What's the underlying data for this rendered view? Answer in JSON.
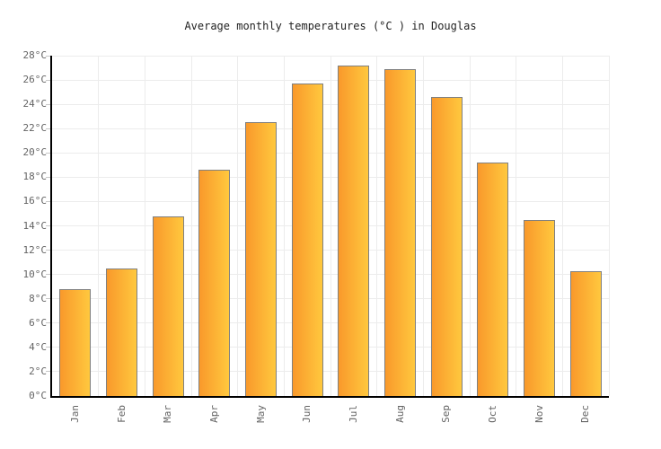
{
  "chart_data": {
    "type": "bar",
    "title": "Average monthly temperatures (°C ) in Douglas",
    "categories": [
      "Jan",
      "Feb",
      "Mar",
      "Apr",
      "May",
      "Jun",
      "Jul",
      "Aug",
      "Sep",
      "Oct",
      "Nov",
      "Dec"
    ],
    "values": [
      8.8,
      10.5,
      14.8,
      18.6,
      22.5,
      25.7,
      27.2,
      26.9,
      24.6,
      19.2,
      14.5,
      10.3
    ],
    "xlabel": "",
    "ylabel": "",
    "ylim": [
      0,
      28
    ],
    "ytick_step": 2,
    "ytick_labels": [
      "0°C",
      "2°C",
      "4°C",
      "6°C",
      "8°C",
      "10°C",
      "12°C",
      "14°C",
      "16°C",
      "18°C",
      "20°C",
      "22°C",
      "24°C",
      "26°C",
      "28°C"
    ],
    "grid": true,
    "legend": false
  },
  "colors": {
    "background": "#ffffff",
    "bar_gradient_left": "#F9992B",
    "bar_gradient_right": "#FFC83E",
    "bar_border": "#808080",
    "axis": "#000000",
    "gridline": "#ECECEC",
    "tick_mark": "#C8C8C8",
    "tick_text": "#646464",
    "title_text": "#222222"
  }
}
